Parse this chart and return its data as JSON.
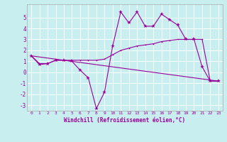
{
  "xlabel": "Windchill (Refroidissement éolien,°C)",
  "background_color": "#c8eef0",
  "grid_color": "#ffffff",
  "line_color": "#990099",
  "x_hours": [
    0,
    1,
    2,
    3,
    4,
    5,
    6,
    7,
    8,
    9,
    10,
    11,
    12,
    13,
    14,
    15,
    16,
    17,
    18,
    19,
    20,
    21,
    22,
    23
  ],
  "windchill": [
    1.5,
    0.7,
    0.8,
    1.1,
    1.1,
    1.0,
    0.2,
    -0.5,
    -3.3,
    -1.8,
    2.4,
    5.5,
    4.5,
    5.5,
    4.2,
    4.2,
    5.3,
    4.8,
    4.3,
    3.0,
    3.0,
    0.5,
    -0.8,
    -0.8
  ],
  "temp_line": [
    1.5,
    0.8,
    0.8,
    1.1,
    1.1,
    1.1,
    1.1,
    1.1,
    1.1,
    1.2,
    1.6,
    2.0,
    2.2,
    2.4,
    2.5,
    2.6,
    2.8,
    2.9,
    3.0,
    3.0,
    3.0,
    3.0,
    -0.8,
    -0.8
  ],
  "diag_line_x": [
    0,
    23
  ],
  "diag_line_y": [
    1.5,
    -0.8
  ],
  "ylim": [
    -3.5,
    6.2
  ],
  "yticks": [
    -3,
    -2,
    -1,
    0,
    1,
    2,
    3,
    4,
    5
  ],
  "xticks": [
    0,
    1,
    2,
    3,
    4,
    5,
    6,
    7,
    8,
    9,
    10,
    11,
    12,
    13,
    14,
    15,
    16,
    17,
    18,
    19,
    20,
    21,
    22,
    23
  ],
  "xtick_labels": [
    "0",
    "1",
    "2",
    "3",
    "4",
    "5",
    "6",
    "7",
    "8",
    "9",
    "10",
    "11",
    "12",
    "13",
    "14",
    "15",
    "16",
    "17",
    "18",
    "19",
    "20",
    "21",
    "22",
    "23"
  ],
  "xlim": [
    -0.5,
    23.5
  ]
}
